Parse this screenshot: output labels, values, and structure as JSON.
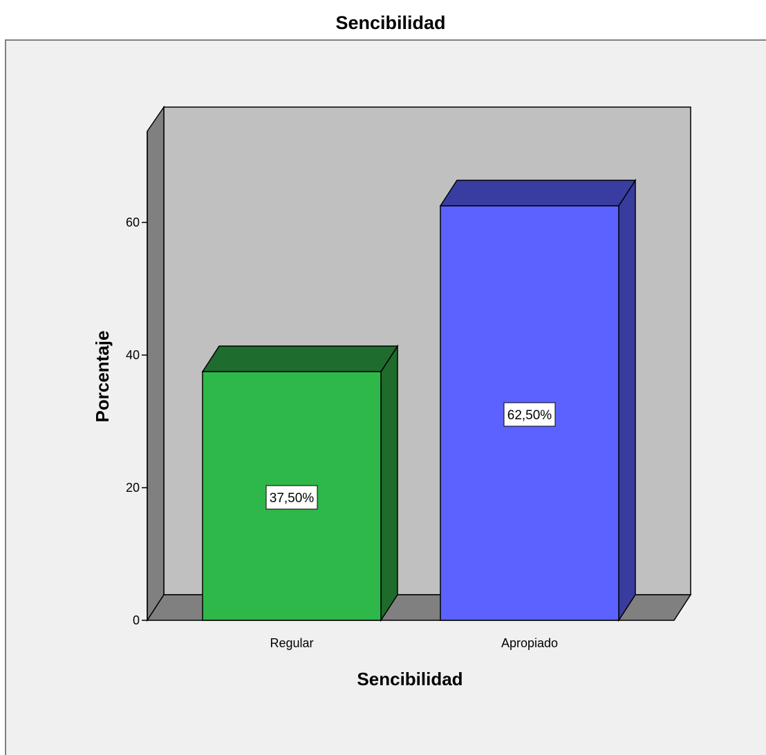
{
  "chart_data": {
    "type": "bar",
    "title": "Sencibilidad",
    "xlabel": "Sencibilidad",
    "ylabel": "Porcentaje",
    "categories": [
      "Regular",
      "Apropiado"
    ],
    "values": [
      37.5,
      62.5
    ],
    "data_labels": [
      "37,50%",
      "62,50%"
    ],
    "yticks": [
      0,
      20,
      40,
      60
    ],
    "ytick_labels": [
      "0",
      "20",
      "40",
      "60"
    ],
    "ylim": [
      0,
      77
    ],
    "grid": false,
    "legend": "none",
    "three_d": true,
    "colors": {
      "bars": [
        "#2fb84a",
        "#5b62ff"
      ],
      "bars_side": [
        "#1e6b2c",
        "#383c9e"
      ],
      "bars_top": [
        "#1f6d2e",
        "#393da2"
      ],
      "back_wall": "#c0c0c0",
      "side_wall": "#808080",
      "floor": "#808080",
      "plot_background": "#f0f0f0",
      "label_box": "#ffffff"
    }
  }
}
